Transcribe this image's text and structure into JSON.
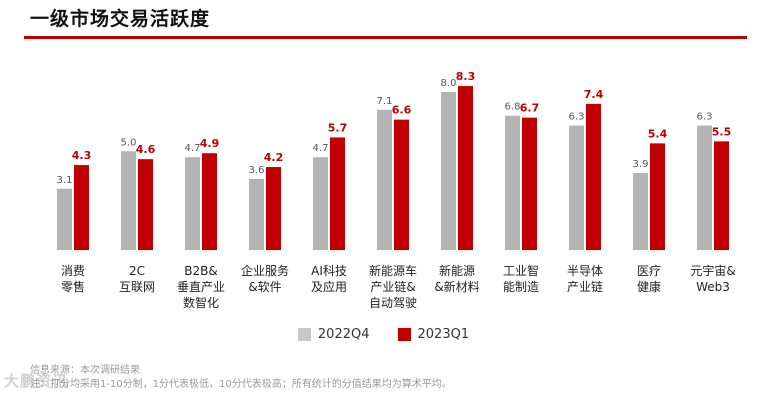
{
  "title": "一级市场交易活跃度",
  "colors": {
    "accent": "#c00000",
    "series_2022": "#b3b3b3",
    "series_2023": "#c00000"
  },
  "chart_data": {
    "type": "bar",
    "title": "一级市场交易活跃度",
    "xlabel": "",
    "ylabel": "",
    "grid": false,
    "legend_position": "bottom",
    "categories": [
      [
        "消费",
        "零售"
      ],
      [
        "2C",
        "互联网"
      ],
      [
        "B2B&",
        "垂直产业",
        "数智化"
      ],
      [
        "企业服务",
        "&软件"
      ],
      [
        "AI科技",
        "及应用"
      ],
      [
        "新能源车",
        "产业链&",
        "自动驾驶"
      ],
      [
        "新能源",
        "&新材料"
      ],
      [
        "工业智",
        "能制造"
      ],
      [
        "半导体",
        "产业链"
      ],
      [
        "医疗",
        "健康"
      ],
      [
        "元宇宙&",
        "Web3"
      ]
    ],
    "series": [
      {
        "name": "2022Q4",
        "values": [
          3.1,
          5.0,
          4.7,
          3.6,
          4.7,
          7.1,
          8.0,
          6.8,
          6.3,
          3.9,
          6.3
        ]
      },
      {
        "name": "2023Q1",
        "values": [
          4.3,
          4.6,
          4.9,
          4.2,
          5.7,
          6.6,
          8.3,
          6.7,
          7.4,
          5.4,
          5.5
        ]
      }
    ]
  },
  "legend": [
    {
      "label": "2022Q4",
      "color": "#c8c8c8"
    },
    {
      "label": "2023Q1",
      "color": "#c00000"
    }
  ],
  "footnote": {
    "source": "信息来源：本次调研结果",
    "note": "注：打分均采用1-10分制，1分代表极低，10分代表极高；所有统计的分值结果均为算术平均。"
  },
  "watermark": "大鹏资讯"
}
